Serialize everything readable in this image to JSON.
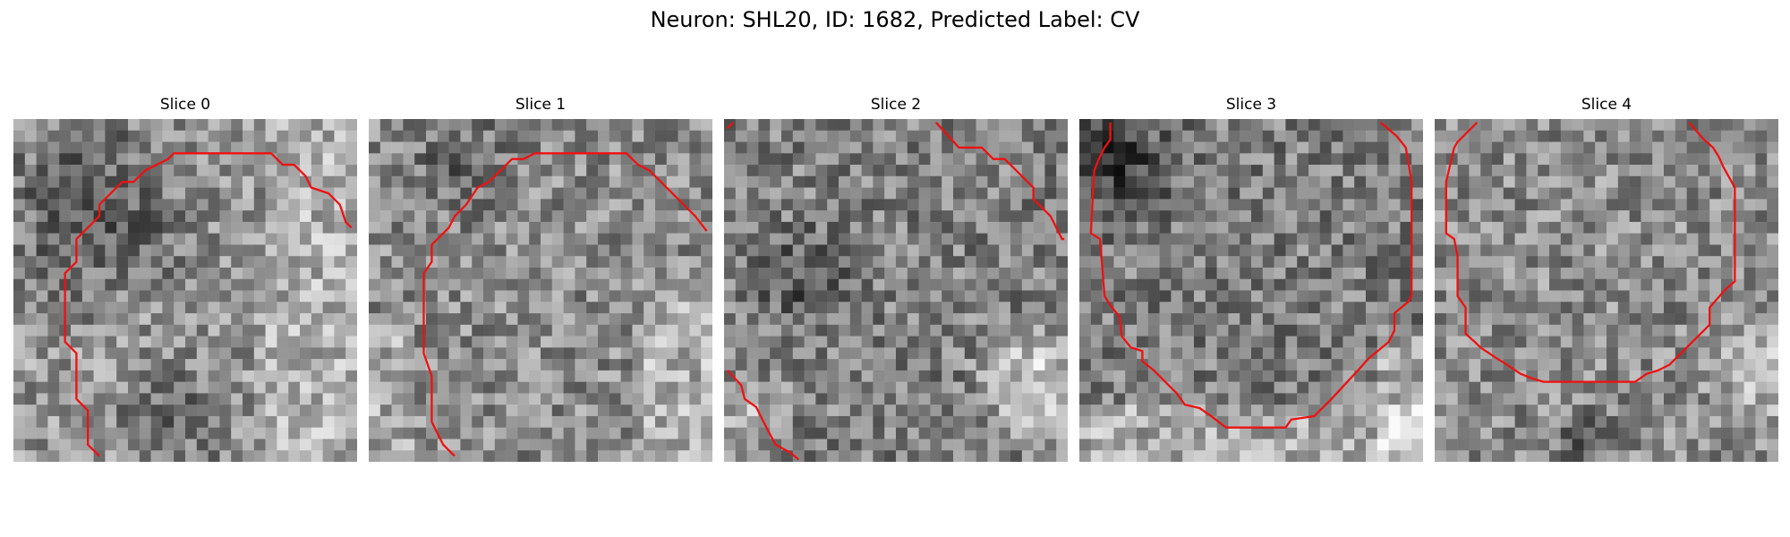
{
  "figure": {
    "title": "Neuron: SHL20, ID: 1682, Predicted Label: CV"
  },
  "contour_color": "#ee1111",
  "colormap": "gray",
  "slices": [
    {
      "title": "Slice 0"
    },
    {
      "title": "Slice 1"
    },
    {
      "title": "Slice 2"
    },
    {
      "title": "Slice 3"
    },
    {
      "title": "Slice 4"
    }
  ]
}
